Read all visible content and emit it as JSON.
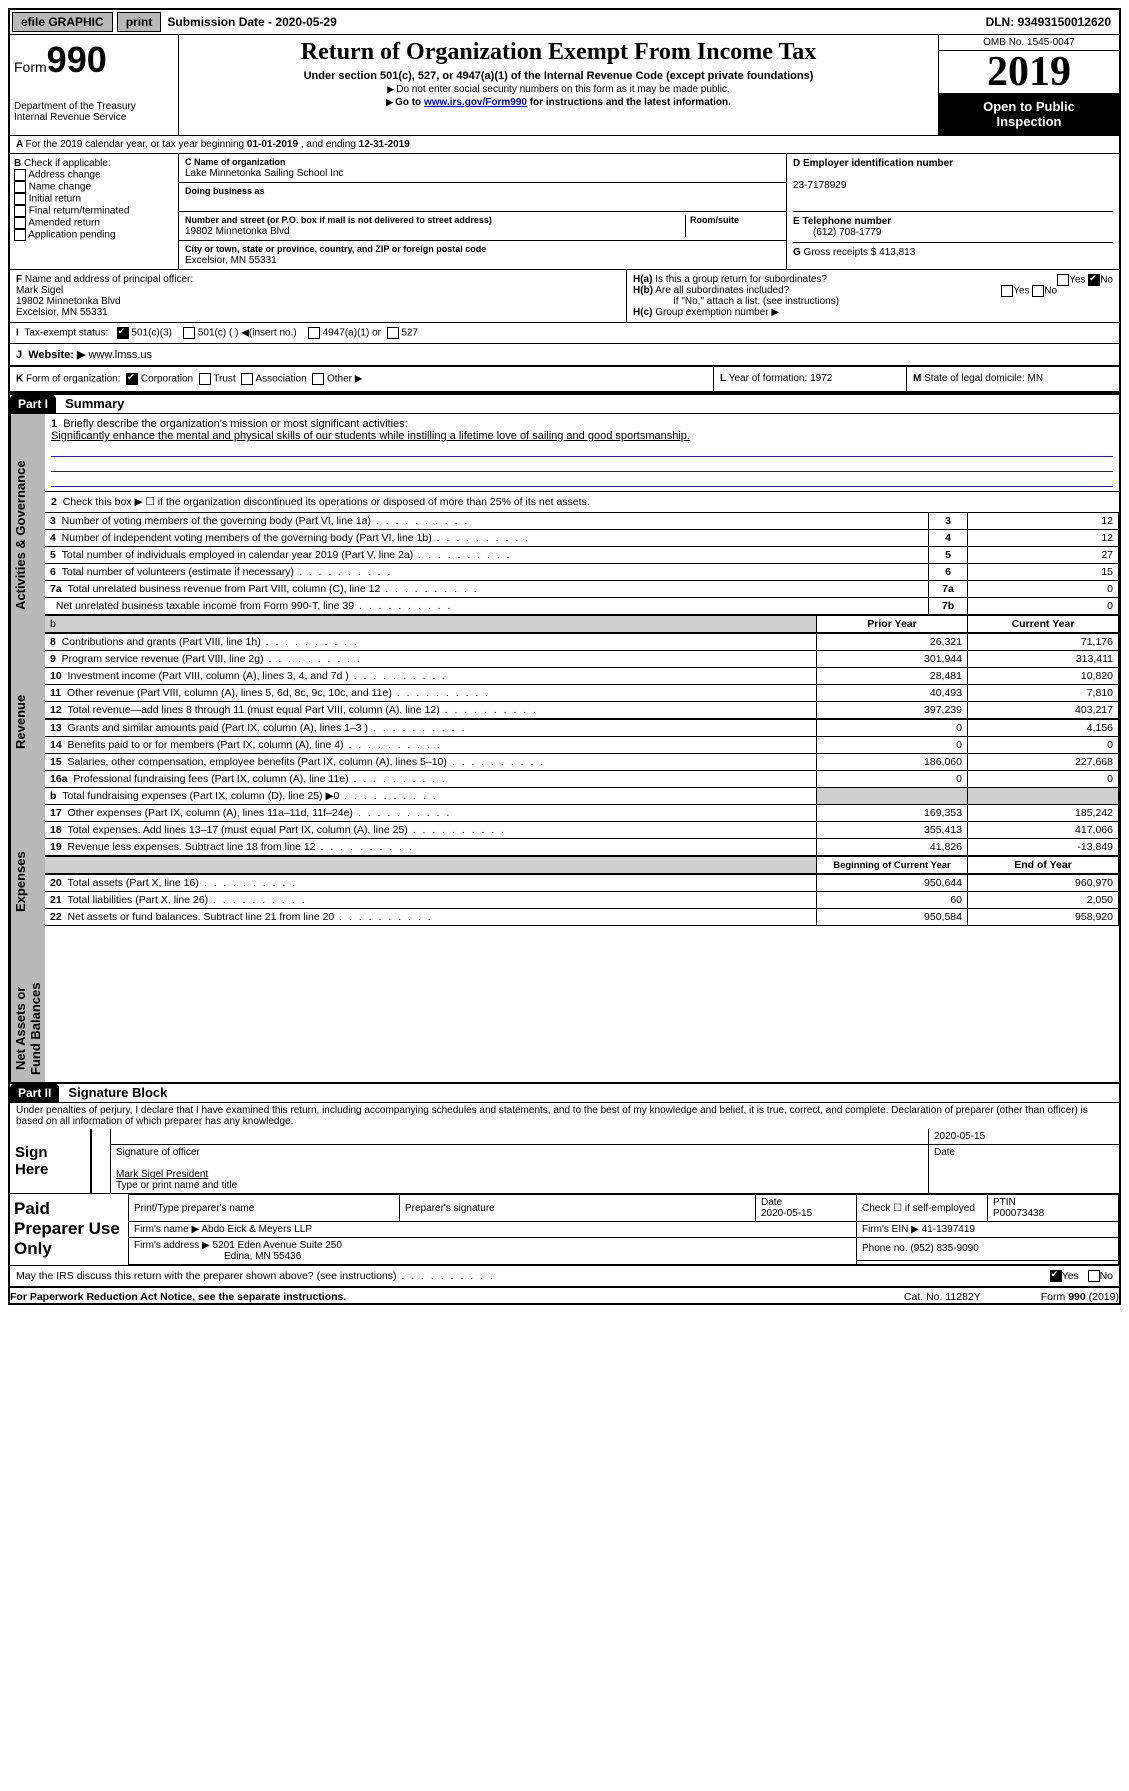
{
  "topbar": {
    "efile": "efile GRAPHIC",
    "print": "print",
    "sub_label": "Submission Date - ",
    "sub_date": "2020-05-29",
    "dln_label": "DLN: ",
    "dln": "93493150012620"
  },
  "header": {
    "form_prefix": "Form",
    "form_no": "990",
    "dept1": "Department of the Treasury",
    "dept2": "Internal Revenue Service",
    "title": "Return of Organization Exempt From Income Tax",
    "subtitle": "Under section 501(c), 527, or 4947(a)(1) of the Internal Revenue Code (except private foundations)",
    "note1": "Do not enter social security numbers on this form as it may be made public.",
    "note2_pre": "Go to ",
    "note2_link": "www.irs.gov/Form990",
    "note2_post": " for instructions and the latest information.",
    "omb": "OMB No. 1545-0047",
    "year": "2019",
    "open1": "Open to Public",
    "open2": "Inspection"
  },
  "lineA": {
    "text_pre": "For the 2019 calendar year, or tax year beginning ",
    "begin": "01-01-2019",
    "mid": " , and ending ",
    "end": "12-31-2019"
  },
  "boxB": {
    "label": "B",
    "check_label": " Check if applicable:",
    "items": [
      "Address change",
      "Name change",
      "Initial return",
      "Final return/terminated",
      "Amended return",
      "Application pending"
    ]
  },
  "boxC": {
    "c_label": "C Name of organization",
    "org": "Lake Minnetonka Sailing School Inc",
    "dba_label": "Doing business as",
    "dba": "",
    "addr_label": "Number and street (or P.O. box if mail is not delivered to street address)",
    "room_label": "Room/suite",
    "street": "19802 Minnetonka Blvd",
    "city_label": "City or town, state or province, country, and ZIP or foreign postal code",
    "city": "Excelsior, MN  55331"
  },
  "boxD": {
    "label": "D Employer identification number",
    "ein": "23-7178929"
  },
  "boxE": {
    "label": "E Telephone number",
    "phone": "(612) 708-1779"
  },
  "boxG": {
    "label": "G",
    "text": " Gross receipts $ ",
    "amount": "413,813"
  },
  "boxF": {
    "label": "F",
    "text": " Name and address of principal officer:",
    "name": "Mark Sigel",
    "street": "19802 Minnetonka Blvd",
    "city": "Excelsior, MN  55331"
  },
  "boxH": {
    "ha_label": "H(a)",
    "ha_text": "  Is this a group return for subordinates?",
    "hb_label": "H(b)",
    "hb_text": "  Are all subordinates included?",
    "hb_note": "If \"No,\" attach a list. (see instructions)",
    "hc_label": "H(c)",
    "hc_text": "  Group exemption number ▶",
    "yes": "Yes",
    "no": "No"
  },
  "boxI": {
    "label": "I",
    "text": "Tax-exempt status:",
    "o1": "501(c)(3)",
    "o2": "501(c) (  ) ◀(insert no.)",
    "o3": "4947(a)(1) or",
    "o4": "527"
  },
  "boxJ": {
    "label": "J",
    "text": "Website: ▶",
    "url": "  www.lmss.us"
  },
  "boxK": {
    "label": "K",
    "text": " Form of organization:",
    "o1": "Corporation",
    "o2": "Trust",
    "o3": "Association",
    "o4": "Other ▶"
  },
  "boxL": {
    "label": "L",
    "text": " Year of formation: ",
    "val": "1972"
  },
  "boxM": {
    "label": "M",
    "text": " State of legal domicile: ",
    "val": "MN"
  },
  "part1": {
    "tab": "Part I",
    "title": "Summary"
  },
  "vtabs": {
    "gov": "Activities & Governance",
    "rev": "Revenue",
    "exp": "Expenses",
    "net": "Net Assets or\nFund Balances"
  },
  "summary": {
    "l1_label": "1",
    "l1_text": "Briefly describe the organization's mission or most significant activities:",
    "l1_mission": "Significantly enhance the mental and physical skills of our students while instilling a lifetime love of sailing and good sportsmanship.",
    "l2_text": "Check this box ▶ ☐  if the organization discontinued its operations or disposed of more than 25% of its net assets.",
    "rows_gov": [
      {
        "n": "3",
        "t": "Number of voting members of the governing body (Part VI, line 1a)",
        "k": "3",
        "v": "12"
      },
      {
        "n": "4",
        "t": "Number of independent voting members of the governing body (Part VI, line 1b)",
        "k": "4",
        "v": "12"
      },
      {
        "n": "5",
        "t": "Total number of individuals employed in calendar year 2019 (Part V, line 2a)",
        "k": "5",
        "v": "27"
      },
      {
        "n": "6",
        "t": "Total number of volunteers (estimate if necessary)",
        "k": "6",
        "v": "15"
      },
      {
        "n": "7a",
        "t": "Total unrelated business revenue from Part VIII, column (C), line 12",
        "k": "7a",
        "v": "0"
      },
      {
        "n": "",
        "t": "Net unrelated business taxable income from Form 990-T, line 39",
        "k": "7b",
        "v": "0"
      }
    ],
    "header_prior": "Prior Year",
    "header_curr": "Current Year",
    "rows_rev": [
      {
        "n": "8",
        "t": "Contributions and grants (Part VIII, line 1h)",
        "p": "26,321",
        "c": "71,176"
      },
      {
        "n": "9",
        "t": "Program service revenue (Part VIII, line 2g)",
        "p": "301,944",
        "c": "313,411"
      },
      {
        "n": "10",
        "t": "Investment income (Part VIII, column (A), lines 3, 4, and 7d )",
        "p": "28,481",
        "c": "10,820"
      },
      {
        "n": "11",
        "t": "Other revenue (Part VIII, column (A), lines 5, 6d, 8c, 9c, 10c, and 11e)",
        "p": "40,493",
        "c": "7,810"
      },
      {
        "n": "12",
        "t": "Total revenue—add lines 8 through 11 (must equal Part VIII, column (A), line 12)",
        "p": "397,239",
        "c": "403,217"
      }
    ],
    "rows_exp": [
      {
        "n": "13",
        "t": "Grants and similar amounts paid (Part IX, column (A), lines 1–3 )",
        "p": "0",
        "c": "4,156"
      },
      {
        "n": "14",
        "t": "Benefits paid to or for members (Part IX, column (A), line 4)",
        "p": "0",
        "c": "0"
      },
      {
        "n": "15",
        "t": "Salaries, other compensation, employee benefits (Part IX, column (A), lines 5–10)",
        "p": "186,060",
        "c": "227,668"
      },
      {
        "n": "16a",
        "t": "Professional fundraising fees (Part IX, column (A), line 11e)",
        "p": "0",
        "c": "0"
      },
      {
        "n": "b",
        "t": "Total fundraising expenses (Part IX, column (D), line 25) ▶0",
        "p": "",
        "c": "",
        "grey": true
      },
      {
        "n": "17",
        "t": "Other expenses (Part IX, column (A), lines 11a–11d, 11f–24e)",
        "p": "169,353",
        "c": "185,242"
      },
      {
        "n": "18",
        "t": "Total expenses. Add lines 13–17 (must equal Part IX, column (A), line 25)",
        "p": "355,413",
        "c": "417,066"
      },
      {
        "n": "19",
        "t": "Revenue less expenses. Subtract line 18 from line 12",
        "p": "41,826",
        "c": "-13,849"
      }
    ],
    "header_begin": "Beginning of Current Year",
    "header_end": "End of Year",
    "rows_net": [
      {
        "n": "20",
        "t": "Total assets (Part X, line 16)",
        "p": "950,644",
        "c": "960,970"
      },
      {
        "n": "21",
        "t": "Total liabilities (Part X, line 26)",
        "p": "60",
        "c": "2,050"
      },
      {
        "n": "22",
        "t": "Net assets or fund balances. Subtract line 21 from line 20",
        "p": "950,584",
        "c": "958,920"
      }
    ]
  },
  "part2": {
    "tab": "Part II",
    "title": "Signature Block"
  },
  "sig": {
    "perjury": "Under penalties of perjury, I declare that I have examined this return, including accompanying schedules and statements, and to the best of my knowledge and belief, it is true, correct, and complete. Declaration of preparer (other than officer) is based on all information of which preparer has any knowledge.",
    "sign_here": "Sign Here",
    "sig_officer": "Signature of officer",
    "sig_date": "2020-05-15",
    "date_label": "Date",
    "officer_name": "Mark Sigel  President",
    "name_label": "Type or print name and title",
    "paid": "Paid Preparer Use Only",
    "prep_name_label": "Print/Type preparer's name",
    "prep_sig_label": "Preparer's signature",
    "prep_date_label": "Date",
    "prep_date": "2020-05-15",
    "check_self": "Check ☐ if self-employed",
    "ptin_label": "PTIN",
    "ptin": "P00073438",
    "firm_name_label": "Firm's name    ▶ ",
    "firm_name": "Abdo Eick & Meyers LLP",
    "firm_ein_label": "Firm's EIN ▶ ",
    "firm_ein": "41-1397419",
    "firm_addr_label": "Firm's address ▶ ",
    "firm_addr1": "5201 Eden Avenue Suite 250",
    "firm_addr2": "Edina, MN  55436",
    "phone_label": "Phone no. ",
    "phone": "(952) 835-9090",
    "discuss": "May the IRS discuss this return with the preparer shown above? (see instructions)",
    "yes": "Yes",
    "no": "No"
  },
  "footer": {
    "paperwork": "For Paperwork Reduction Act Notice, see the separate instructions.",
    "cat": "Cat. No. 11282Y",
    "form": "Form ",
    "formno": "990",
    "year": " (2019)"
  }
}
